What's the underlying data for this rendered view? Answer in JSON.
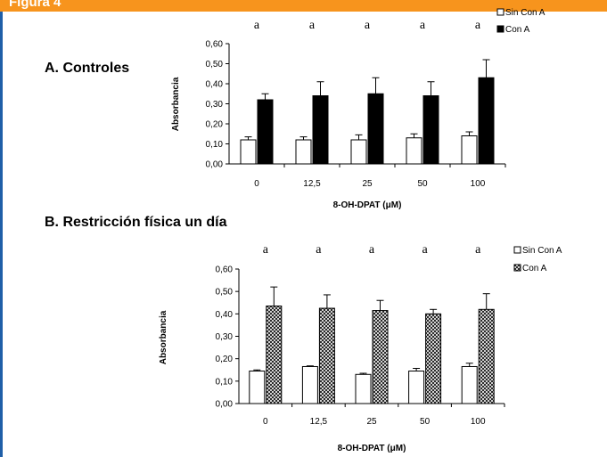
{
  "header": {
    "title": "Figura 4"
  },
  "colors": {
    "header_bg": "#f7941d",
    "border": "#1f5fa8",
    "bar_con_a_controls": "#000000",
    "bar_sin_con_a": "#ffffff"
  },
  "chart_data": [
    {
      "type": "bar",
      "title": "A. Controles",
      "xlabel": "8-OH-DPAT (μM)",
      "ylabel": "Absorbancia",
      "categories": [
        "0",
        "12,5",
        "25",
        "50",
        "100"
      ],
      "ylim": [
        0,
        0.6
      ],
      "yticks": [
        "0,00",
        "0,10",
        "0,20",
        "0,30",
        "0,40",
        "0,50",
        "0,60"
      ],
      "series": [
        {
          "name": "Sin Con A",
          "values": [
            0.12,
            0.12,
            0.12,
            0.13,
            0.14
          ],
          "errors": [
            0.015,
            0.015,
            0.025,
            0.02,
            0.02
          ],
          "fill": "white"
        },
        {
          "name": "Con A",
          "values": [
            0.32,
            0.34,
            0.35,
            0.34,
            0.43
          ],
          "errors": [
            0.03,
            0.07,
            0.08,
            0.07,
            0.09
          ],
          "fill": "black"
        }
      ],
      "annotations": [
        "a",
        "a",
        "a",
        "a",
        "a"
      ],
      "legend": "top-right"
    },
    {
      "type": "bar",
      "title": "B. Restricción física un día",
      "xlabel": "8-OH-DPAT (μM)",
      "ylabel": "Absorbancia",
      "categories": [
        "0",
        "12,5",
        "25",
        "50",
        "100"
      ],
      "ylim": [
        0,
        0.6
      ],
      "yticks": [
        "0,00",
        "0,10",
        "0,20",
        "0,30",
        "0,40",
        "0,50",
        "0,60"
      ],
      "series": [
        {
          "name": "Sin Con A",
          "values": [
            0.145,
            0.165,
            0.13,
            0.145,
            0.165
          ],
          "errors": [
            0.005,
            0.003,
            0.005,
            0.012,
            0.015
          ],
          "fill": "white"
        },
        {
          "name": "Con A",
          "values": [
            0.435,
            0.425,
            0.415,
            0.4,
            0.42
          ],
          "errors": [
            0.085,
            0.06,
            0.045,
            0.02,
            0.07
          ],
          "fill": "crosshatch"
        }
      ],
      "annotations": [
        "a",
        "a",
        "a",
        "a",
        "a"
      ],
      "legend": "top-right"
    }
  ]
}
